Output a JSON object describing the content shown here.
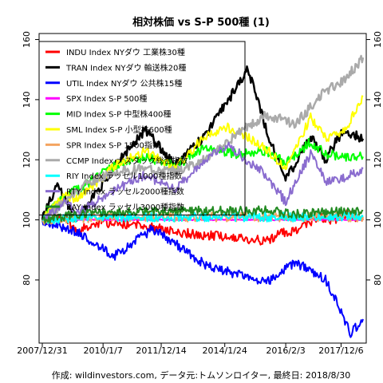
{
  "chart_data": {
    "type": "line",
    "title": "相対株価 vs S-P 500種 (1)",
    "footer": "作成: wildinvestors.com, データ元:トムソンロイター, 最終日: 2018/8/30",
    "ylim": [
      59,
      162
    ],
    "y_ticks": [
      80,
      100,
      120,
      140,
      160
    ],
    "x_range": [
      "2007-12-31",
      "2018-08-30"
    ],
    "x_ticks": [
      {
        "date": "2007-12-31",
        "label": "2007/12/31"
      },
      {
        "date": "2010-01-07",
        "label": "2010/1/7"
      },
      {
        "date": "2011-12-14",
        "label": "2011/12/14"
      },
      {
        "date": "2014-01-24",
        "label": "2014/1/24"
      },
      {
        "date": "2016-02-03",
        "label": "2016/2/3"
      },
      {
        "date": "2017-12-06",
        "label": "2017/12/6"
      }
    ],
    "legend_position": "top-left",
    "grid": false,
    "series": [
      {
        "name": "INDU Index NYダウ 工業株30種",
        "color": "#ff0000",
        "lw": 2,
        "points": [
          [
            "2007-12-31",
            100
          ],
          [
            "2008-10-01",
            101
          ],
          [
            "2009-03-01",
            96
          ],
          [
            "2009-09-01",
            99
          ],
          [
            "2010-06-01",
            99
          ],
          [
            "2011-06-01",
            98
          ],
          [
            "2012-06-01",
            96
          ],
          [
            "2013-06-01",
            95
          ],
          [
            "2014-06-01",
            94
          ],
          [
            "2015-06-01",
            93
          ],
          [
            "2016-02-01",
            96
          ],
          [
            "2016-08-01",
            97
          ],
          [
            "2017-03-01",
            101
          ],
          [
            "2017-09-01",
            100
          ],
          [
            "2018-03-01",
            102
          ],
          [
            "2018-08-30",
            100
          ]
        ]
      },
      {
        "name": "TRAN Index NYダウ 輸送株20種",
        "color": "#000000",
        "lw": 2.5,
        "points": [
          [
            "2007-12-31",
            100
          ],
          [
            "2008-07-01",
            112
          ],
          [
            "2009-03-01",
            100
          ],
          [
            "2010-06-01",
            118
          ],
          [
            "2011-06-01",
            130
          ],
          [
            "2012-06-01",
            118
          ],
          [
            "2013-06-01",
            128
          ],
          [
            "2014-11-01",
            150
          ],
          [
            "2015-08-01",
            126
          ],
          [
            "2016-02-01",
            113
          ],
          [
            "2016-12-01",
            128
          ],
          [
            "2017-06-01",
            120
          ],
          [
            "2018-01-01",
            130
          ],
          [
            "2018-08-30",
            127
          ]
        ]
      },
      {
        "name": "UTIL Index NYダウ 公共株15種",
        "color": "#0000ff",
        "lw": 2,
        "points": [
          [
            "2007-12-31",
            100
          ],
          [
            "2008-10-01",
            97
          ],
          [
            "2009-03-01",
            96
          ],
          [
            "2009-10-01",
            92
          ],
          [
            "2010-06-01",
            88
          ],
          [
            "2011-09-01",
            97
          ],
          [
            "2012-06-01",
            92
          ],
          [
            "2013-06-01",
            85
          ],
          [
            "2014-06-01",
            82
          ],
          [
            "2015-06-01",
            79
          ],
          [
            "2016-06-01",
            86
          ],
          [
            "2017-06-01",
            80
          ],
          [
            "2018-01-01",
            68
          ],
          [
            "2018-04-01",
            62
          ],
          [
            "2018-08-30",
            67
          ]
        ]
      },
      {
        "name": "SPX Index S-P 500種",
        "color": "#ff00ff",
        "lw": 2,
        "points": [
          [
            "2007-12-31",
            100
          ],
          [
            "2018-08-30",
            100
          ]
        ]
      },
      {
        "name": "MID Index S-P 中型株400種",
        "color": "#00ff00",
        "lw": 2,
        "points": [
          [
            "2007-12-31",
            100
          ],
          [
            "2008-10-01",
            108
          ],
          [
            "2009-03-01",
            110
          ],
          [
            "2010-06-01",
            118
          ],
          [
            "2011-06-01",
            121
          ],
          [
            "2012-06-01",
            118
          ],
          [
            "2013-06-01",
            124
          ],
          [
            "2014-06-01",
            122
          ],
          [
            "2015-06-01",
            123
          ],
          [
            "2016-02-01",
            119
          ],
          [
            "2016-12-01",
            126
          ],
          [
            "2017-06-01",
            122
          ],
          [
            "2018-01-01",
            121
          ],
          [
            "2018-08-30",
            121
          ]
        ]
      },
      {
        "name": "SML Index S-P 小型株600種",
        "color": "#ffff00",
        "lw": 2,
        "points": [
          [
            "2007-12-31",
            100
          ],
          [
            "2008-10-01",
            108
          ],
          [
            "2009-03-01",
            107
          ],
          [
            "2010-06-01",
            118
          ],
          [
            "2011-06-01",
            123
          ],
          [
            "2012-06-01",
            117
          ],
          [
            "2013-06-01",
            128
          ],
          [
            "2014-03-01",
            131
          ],
          [
            "2015-06-01",
            124
          ],
          [
            "2016-02-01",
            117
          ],
          [
            "2016-12-01",
            134
          ],
          [
            "2017-06-01",
            127
          ],
          [
            "2018-01-01",
            129
          ],
          [
            "2018-08-30",
            141
          ]
        ]
      },
      {
        "name": "SPR Index S-P 1500指数",
        "color": "#f4a460",
        "lw": 2,
        "points": [
          [
            "2007-12-31",
            100
          ],
          [
            "2010-01-01",
            101
          ],
          [
            "2014-01-01",
            101
          ],
          [
            "2018-08-30",
            101
          ]
        ]
      },
      {
        "name": "CCMP Index ナスダック総合指数",
        "color": "#aaaaaa",
        "lw": 2.5,
        "points": [
          [
            "2007-12-31",
            100
          ],
          [
            "2008-10-01",
            106
          ],
          [
            "2009-06-01",
            112
          ],
          [
            "2010-06-01",
            116
          ],
          [
            "2011-06-01",
            117
          ],
          [
            "2012-06-01",
            116
          ],
          [
            "2013-06-01",
            120
          ],
          [
            "2014-06-01",
            128
          ],
          [
            "2015-06-01",
            135
          ],
          [
            "2016-06-01",
            132
          ],
          [
            "2017-06-01",
            143
          ],
          [
            "2018-01-01",
            146
          ],
          [
            "2018-08-30",
            154
          ]
        ]
      },
      {
        "name": "RIY Index ラッセル1000種指数",
        "color": "#00ffff",
        "lw": 2,
        "points": [
          [
            "2007-12-31",
            100
          ],
          [
            "2010-01-01",
            101
          ],
          [
            "2014-01-01",
            101
          ],
          [
            "2018-08-30",
            101
          ]
        ]
      },
      {
        "name": "RTY Index ラッセル2000種指数",
        "color": "#8a6ccf",
        "lw": 2,
        "points": [
          [
            "2007-12-31",
            100
          ],
          [
            "2008-10-01",
            106
          ],
          [
            "2009-03-01",
            102
          ],
          [
            "2010-06-01",
            110
          ],
          [
            "2011-06-01",
            115
          ],
          [
            "2012-06-01",
            110
          ],
          [
            "2013-06-01",
            120
          ],
          [
            "2014-03-01",
            125
          ],
          [
            "2015-06-01",
            115
          ],
          [
            "2016-02-01",
            106
          ],
          [
            "2016-12-01",
            122
          ],
          [
            "2017-06-01",
            113
          ],
          [
            "2018-01-01",
            114
          ],
          [
            "2018-08-30",
            117
          ]
        ]
      },
      {
        "name": "RAY Index ラッセル3000種指数",
        "color": "#228b22",
        "lw": 2,
        "points": [
          [
            "2007-12-31",
            100
          ],
          [
            "2009-03-01",
            102
          ],
          [
            "2011-06-01",
            103
          ],
          [
            "2013-06-01",
            103
          ],
          [
            "2015-06-01",
            103
          ],
          [
            "2016-06-01",
            102
          ],
          [
            "2018-08-30",
            103
          ]
        ]
      }
    ]
  }
}
